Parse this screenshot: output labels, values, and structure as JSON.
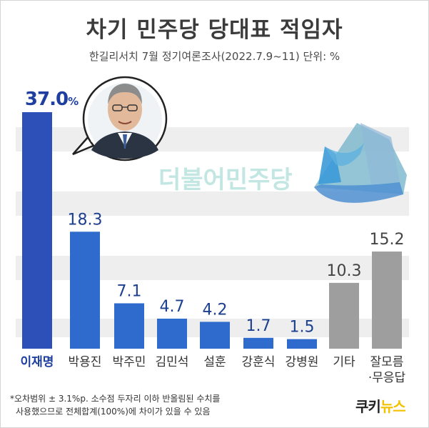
{
  "title": "차기 민주당 당대표 적임자",
  "subtitle": "한길리서치 7월 정기여론조사(2022.7.9~11) 단위: %",
  "watermark_text": "더불어민주당",
  "footnote": [
    "*오차범위 ± 3.1%p. 소수점 두자리 이하 반올림된 수치를",
    "사용했으므로 전체합계(100%)에 차이가 있을 수 있음"
  ],
  "brand": {
    "part1": "쿠키",
    "part2": "뉴스"
  },
  "colors": {
    "highlight_bar": "#2c4fb8",
    "candidate_bar": "#2f6bcc",
    "other_bar": "#9e9e9e",
    "highlight_label": "#1f3fa0",
    "label_text": "#1d3f8f",
    "gray_text": "#444444",
    "grid_band": "#eeeeee"
  },
  "chart_data": {
    "type": "bar",
    "title": "차기 민주당 당대표 적임자",
    "categories": [
      "이재명",
      "박용진",
      "박주민",
      "김민석",
      "설훈",
      "강훈식",
      "강병원",
      "기타",
      "잘모름·무응답"
    ],
    "category_lines": [
      [
        "이재명"
      ],
      [
        "박용진"
      ],
      [
        "박주민"
      ],
      [
        "김민석"
      ],
      [
        "설훈"
      ],
      [
        "강훈식"
      ],
      [
        "강병원"
      ],
      [
        "기타"
      ],
      [
        "잘모름",
        "·무응답"
      ]
    ],
    "values": [
      37.0,
      18.3,
      7.1,
      4.7,
      4.2,
      1.7,
      1.5,
      10.3,
      15.2
    ],
    "value_labels": [
      "37.0",
      "18.3",
      "7.1",
      "4.7",
      "4.2",
      "1.7",
      "1.5",
      "10.3",
      "15.2"
    ],
    "highlight_suffix": "%",
    "bar_groups": [
      "highlight",
      "candidate",
      "candidate",
      "candidate",
      "candidate",
      "candidate",
      "candidate",
      "other",
      "other"
    ],
    "ylim": [
      0,
      37.0
    ],
    "xlabel": "",
    "ylabel": "",
    "grid": true,
    "legend": "none"
  }
}
